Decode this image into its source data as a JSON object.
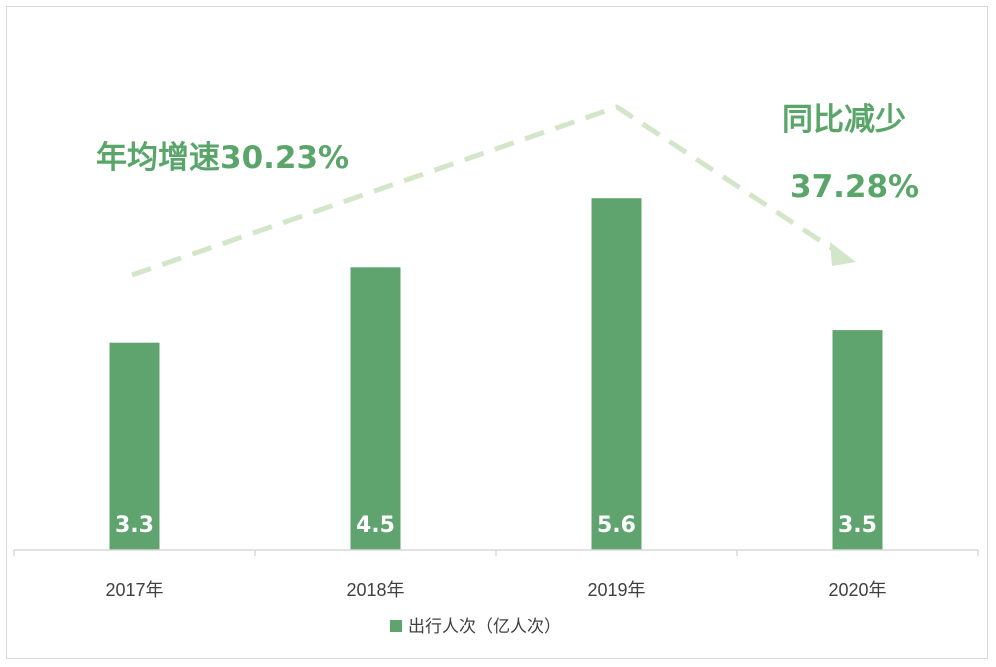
{
  "chart_data": {
    "type": "bar",
    "categories": [
      "2017年",
      "2018年",
      "2019年",
      "2020年"
    ],
    "series": [
      {
        "name": "出行人次（亿人次）",
        "values": [
          3.3,
          4.5,
          5.6,
          3.5
        ]
      }
    ],
    "value_labels": [
      "3.3",
      "4.5",
      "5.6",
      "3.5"
    ],
    "ylim": [
      0,
      7.8
    ],
    "grid": false,
    "legend_position": "bottom",
    "colors": {
      "bar": "#5fa36f",
      "annotation": "#5aa66a",
      "trend_arrow": "#d4e6c9",
      "axis": "#d9d9d9"
    },
    "annotations": {
      "growth": "年均增速30.23%",
      "decline_line1": "同比减少",
      "decline_line2": "37.28%"
    }
  }
}
